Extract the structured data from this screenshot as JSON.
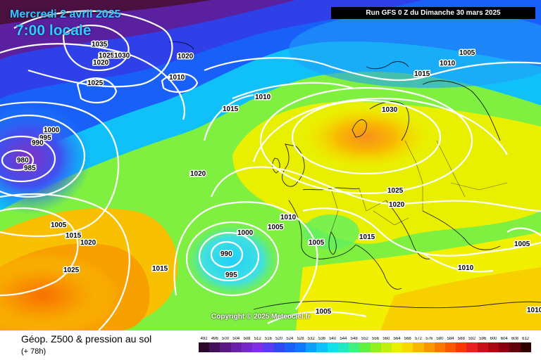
{
  "header": {
    "date": "Mercredi 2 avril 2025",
    "local_time": "7:00 locale",
    "run": "Run GFS 0 Z du Dimanche 30 mars 2025"
  },
  "map": {
    "copyright": "Copyright © 2025 Meteociel.fr",
    "isobars": [
      "1035",
      "1025",
      "1030",
      "1020",
      "1020",
      "1025",
      "1010",
      "1010",
      "1015",
      "1000",
      "995",
      "990",
      "980",
      "985",
      "1020",
      "1030",
      "1005",
      "1015",
      "1010",
      "1025",
      "1020",
      "1010",
      "1005",
      "1000",
      "1005",
      "1005",
      "1015",
      "1020",
      "1025",
      "1015",
      "990",
      "995",
      "1015",
      "1005",
      "1010",
      "1005",
      "1010"
    ]
  },
  "footer": {
    "title": "Géop. Z500 & pression au sol",
    "subtitle": "(+ 78h)"
  },
  "legend": {
    "values": [
      "492",
      "496",
      "500",
      "504",
      "508",
      "512",
      "516",
      "520",
      "524",
      "528",
      "532",
      "536",
      "540",
      "544",
      "548",
      "552",
      "556",
      "560",
      "564",
      "568",
      "572",
      "576",
      "580",
      "584",
      "588",
      "592",
      "596",
      "600",
      "604",
      "608",
      "612"
    ],
    "colors": [
      "#2a0a28",
      "#45105a",
      "#5a1880",
      "#6a20a8",
      "#7828c8",
      "#8030e0",
      "#5a3cf0",
      "#3048f0",
      "#1860f8",
      "#1078f8",
      "#10a0f8",
      "#10c0f8",
      "#10e0e8",
      "#20e8c0",
      "#40f080",
      "#60f040",
      "#90f020",
      "#c0f010",
      "#e8f000",
      "#f8d800",
      "#f8b800",
      "#f89800",
      "#f87800",
      "#f85800",
      "#f83800",
      "#e82020",
      "#c81018",
      "#a80810",
      "#880010",
      "#600008",
      "#300000"
    ]
  }
}
